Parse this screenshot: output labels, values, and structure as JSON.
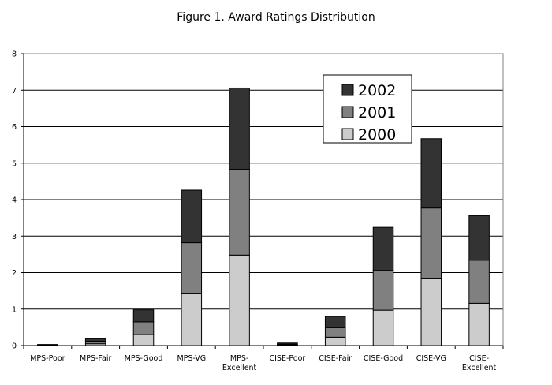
{
  "chart_data": {
    "type": "bar",
    "stacked": true,
    "title": "Figure 1. Award Ratings Distribution",
    "xlabel": "",
    "ylabel": "",
    "ylim": [
      0,
      8
    ],
    "yticks": [
      "0",
      "1",
      "2",
      "3",
      "4",
      "5",
      "6",
      "7",
      "8"
    ],
    "grid": true,
    "legend_position": "top-right",
    "categories": [
      [
        "MPS-Poor"
      ],
      [
        "MPS-Fair"
      ],
      [
        "MPS-Good"
      ],
      [
        "MPS-VG"
      ],
      [
        "MPS-",
        "Excellent"
      ],
      [
        "CISE-Poor"
      ],
      [
        "CISE-Fair"
      ],
      [
        "CISE-Good"
      ],
      [
        "CISE-VG"
      ],
      [
        "CISE-",
        "Excellent"
      ]
    ],
    "series": [
      {
        "name": "2000",
        "color": "#cccccc",
        "values": [
          0.01,
          0.05,
          0.3,
          1.42,
          2.48,
          0.02,
          0.23,
          0.97,
          1.83,
          1.16
        ]
      },
      {
        "name": "2001",
        "color": "#808080",
        "values": [
          0.01,
          0.07,
          0.35,
          1.4,
          2.35,
          0.02,
          0.26,
          1.09,
          1.94,
          1.18
        ]
      },
      {
        "name": "2002",
        "color": "#333333",
        "values": [
          0.01,
          0.07,
          0.33,
          1.44,
          2.23,
          0.03,
          0.31,
          1.18,
          1.9,
          1.22
        ]
      }
    ],
    "legend_order": [
      "2002",
      "2001",
      "2000"
    ]
  }
}
